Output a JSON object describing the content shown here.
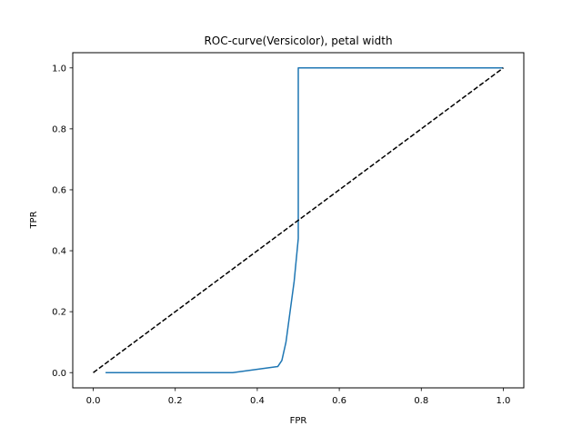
{
  "chart_data": {
    "type": "line",
    "title": "ROC-curve(Versicolor), petal width",
    "xlabel": "FPR",
    "ylabel": "TPR",
    "xlim": [
      -0.05,
      1.05
    ],
    "ylim": [
      -0.05,
      1.05
    ],
    "xticks": [
      0.0,
      0.2,
      0.4,
      0.6,
      0.8,
      1.0
    ],
    "xtick_labels": [
      "0.0",
      "0.2",
      "0.4",
      "0.6",
      "0.8",
      "1.0"
    ],
    "yticks": [
      0.0,
      0.2,
      0.4,
      0.6,
      0.8,
      1.0
    ],
    "ytick_labels": [
      "0.0",
      "0.2",
      "0.4",
      "0.6",
      "0.8",
      "1.0"
    ],
    "grid": false,
    "series": [
      {
        "style": "solid",
        "color": "#1f77b4",
        "x": [
          0.03,
          0.34,
          0.45,
          0.46,
          0.47,
          0.48,
          0.49,
          0.5,
          0.5,
          0.5,
          1.0
        ],
        "y": [
          0.0,
          0.0,
          0.02,
          0.04,
          0.1,
          0.2,
          0.3,
          0.44,
          1.0,
          1.0,
          1.0
        ]
      },
      {
        "style": "dashed",
        "color": "#000000",
        "x": [
          0.0,
          1.0
        ],
        "y": [
          0.0,
          1.0
        ]
      }
    ]
  }
}
